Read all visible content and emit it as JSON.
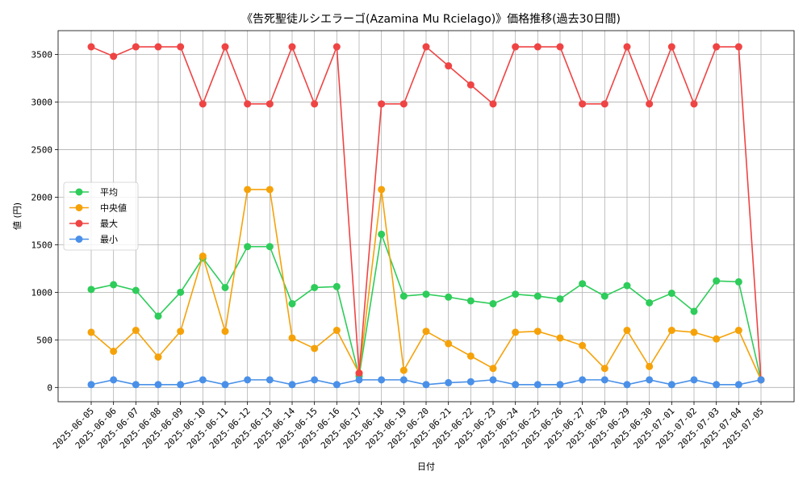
{
  "chart_data": {
    "type": "line",
    "title": "《告死聖徒ルシエラーゴ(Azamina Mu Rcielago)》価格推移(過去30日間)",
    "xlabel": "日付",
    "ylabel": "値 (円)",
    "ylim": [
      -150,
      3750
    ],
    "yticks": [
      0,
      500,
      1000,
      1500,
      2000,
      2500,
      3000,
      3500
    ],
    "grid": true,
    "legend_position": "center-left",
    "categories": [
      "2025-06-05",
      "2025-06-06",
      "2025-06-07",
      "2025-06-08",
      "2025-06-09",
      "2025-06-10",
      "2025-06-11",
      "2025-06-12",
      "2025-06-13",
      "2025-06-14",
      "2025-06-15",
      "2025-06-16",
      "2025-06-17",
      "2025-06-18",
      "2025-06-19",
      "2025-06-20",
      "2025-06-21",
      "2025-06-22",
      "2025-06-23",
      "2025-06-24",
      "2025-06-25",
      "2025-06-26",
      "2025-06-27",
      "2025-06-28",
      "2025-06-29",
      "2025-06-30",
      "2025-07-01",
      "2025-07-02",
      "2025-07-03",
      "2025-07-04",
      "2025-07-05"
    ],
    "series": [
      {
        "name": "平均",
        "color": "#2ecc5a",
        "values": [
          1030,
          1080,
          1020,
          750,
          1000,
          1360,
          1050,
          1480,
          1480,
          880,
          1050,
          1060,
          120,
          1610,
          960,
          980,
          950,
          910,
          880,
          980,
          960,
          930,
          1090,
          960,
          1070,
          890,
          990,
          800,
          1120,
          1110,
          80
        ]
      },
      {
        "name": "中央値",
        "color": "#f5a20a",
        "values": [
          580,
          380,
          600,
          320,
          590,
          1380,
          590,
          2080,
          2080,
          520,
          410,
          600,
          150,
          2080,
          180,
          590,
          460,
          330,
          200,
          580,
          590,
          520,
          440,
          200,
          600,
          220,
          600,
          580,
          510,
          600,
          80
        ]
      },
      {
        "name": "最大",
        "color": "#ef4444",
        "values": [
          3580,
          3480,
          3580,
          3580,
          3580,
          2980,
          3580,
          2980,
          2980,
          3580,
          2980,
          3580,
          150,
          2980,
          2980,
          3580,
          3380,
          3180,
          2980,
          3580,
          3580,
          3580,
          2980,
          2980,
          3580,
          2980,
          3580,
          2980,
          3580,
          3580,
          80
        ]
      },
      {
        "name": "最小",
        "color": "#4a90e8",
        "values": [
          30,
          80,
          30,
          30,
          30,
          80,
          30,
          80,
          80,
          30,
          80,
          30,
          80,
          80,
          80,
          30,
          50,
          60,
          80,
          30,
          30,
          30,
          80,
          80,
          30,
          80,
          30,
          80,
          30,
          30,
          80
        ]
      }
    ]
  }
}
